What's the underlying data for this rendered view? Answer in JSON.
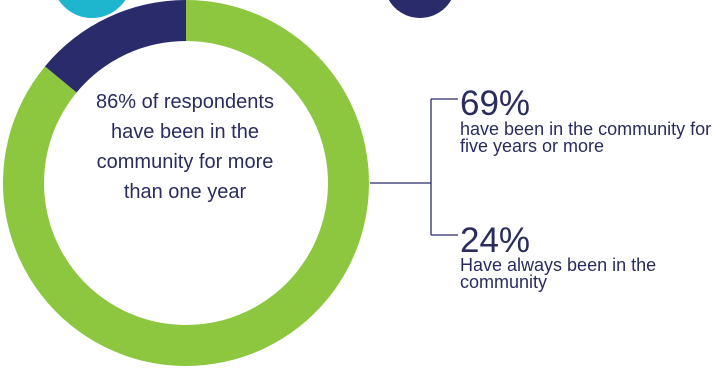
{
  "chart_data": {
    "type": "pie",
    "series": [
      {
        "value": 86,
        "color": "#8dc63f"
      },
      {
        "value": 14,
        "color": "#292b6b"
      }
    ],
    "center_label": "86% of respondents have been in the community for more than one year"
  },
  "breakdown": [
    {
      "number": "69%",
      "text": "have been in the community for five years or more"
    },
    {
      "number": "24%",
      "text": "Have always been in the community"
    }
  ],
  "colors": {
    "green": "#8dc63f",
    "navy": "#292b6b",
    "teal": "#1eb6cf",
    "text": "#2a2c5e"
  }
}
